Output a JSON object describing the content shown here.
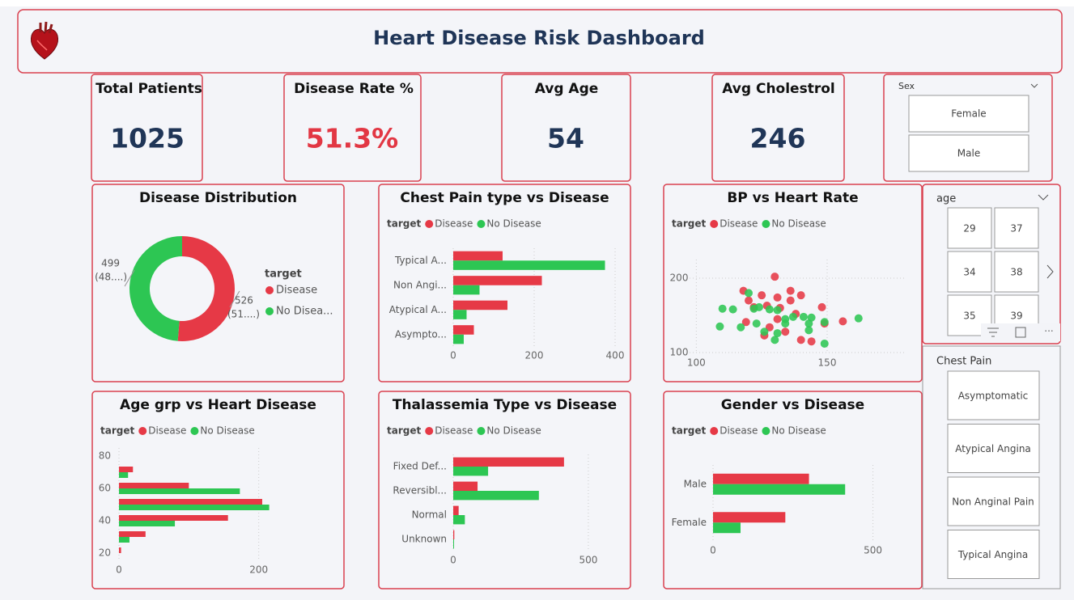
{
  "header": {
    "title": "Heart Disease Risk Dashboard"
  },
  "kpis": [
    {
      "label": "Total Patients",
      "value": 1025
    },
    {
      "label": "Disease Rate %",
      "value": 51.3,
      "value_label": "51.3%"
    },
    {
      "label": "Avg Age",
      "value": 54
    },
    {
      "label": "Avg Cholestrol",
      "value": 246
    }
  ],
  "slicers": {
    "sex": {
      "title": "Sex",
      "items": [
        "Female",
        "Male"
      ]
    },
    "age": {
      "title": "age",
      "items": [
        "29",
        "37",
        "34",
        "38",
        "35",
        "39"
      ]
    },
    "chest_pain": {
      "title": "Chest Pain",
      "items": [
        "Asymptomatic",
        "Atypical Angina",
        "Non Anginal Pain",
        "Typical Angina"
      ]
    }
  },
  "chart_data": [
    {
      "type": "pie",
      "donut": true,
      "title": "Disease Distribution",
      "legend_title": "target",
      "categories": [
        "Disease",
        "No Disea..."
      ],
      "values": [
        526,
        499
      ],
      "percent_labels": [
        "(51....)",
        "(48....)"
      ],
      "colors": [
        "#e63946",
        "#2dc653"
      ]
    },
    {
      "type": "bar",
      "orientation": "horizontal",
      "title": "Chest Pain type vs Disease",
      "legend_title": "target",
      "categories": [
        "Typical A...",
        "Non Angi...",
        "Atypical A...",
        "Asympto..."
      ],
      "series": [
        {
          "name": "Disease",
          "color": "#e63946",
          "values": [
            122,
            219,
            134,
            51
          ]
        },
        {
          "name": "No Disease",
          "color": "#2dc653",
          "values": [
            375,
            65,
            33,
            26
          ]
        }
      ],
      "xlim": [
        0,
        420
      ],
      "xticks": [
        0,
        200,
        400
      ],
      "grid": true
    },
    {
      "type": "scatter",
      "title": "BP vs Heart Rate",
      "legend_title": "target",
      "series": [
        {
          "name": "Disease",
          "color": "#e63946",
          "x": [
            130,
            118,
            125,
            131,
            140,
            136,
            148,
            132,
            122,
            127,
            138,
            156,
            131,
            119,
            128,
            134,
            140,
            144,
            126,
            149,
            136,
            120
          ],
          "y": [
            202,
            183,
            177,
            174,
            177,
            170,
            161,
            160,
            161,
            163,
            152,
            142,
            145,
            141,
            134,
            128,
            117,
            115,
            123,
            139,
            183,
            170
          ]
        },
        {
          "name": "No Disease",
          "color": "#2dc653",
          "x": [
            110,
            114,
            109,
            120,
            122,
            124,
            128,
            131,
            137,
            141,
            144,
            162,
            149,
            143,
            134,
            123,
            117,
            126,
            131,
            143,
            149,
            130,
            134
          ],
          "y": [
            159,
            158,
            135,
            180,
            159,
            161,
            158,
            157,
            148,
            148,
            147,
            146,
            141,
            139,
            139,
            139,
            134,
            128,
            126,
            130,
            112,
            117,
            145
          ]
        }
      ],
      "xlim": [
        90,
        180
      ],
      "xticks": [
        100,
        150
      ],
      "ylim": [
        100,
        225
      ],
      "yticks": [
        100,
        200
      ],
      "grid": true
    },
    {
      "type": "bar",
      "orientation": "horizontal",
      "title": "Age grp vs Heart Disease",
      "legend_title": "target",
      "y": [
        70,
        60,
        50,
        40,
        30,
        20
      ],
      "series": [
        {
          "name": "Disease",
          "color": "#e63946",
          "values": [
            20,
            100,
            205,
            156,
            38,
            3
          ]
        },
        {
          "name": "No Disease",
          "color": "#2dc653",
          "values": [
            13,
            173,
            215,
            80,
            15,
            0
          ]
        }
      ],
      "xlim": [
        0,
        300
      ],
      "xticks": [
        0,
        200
      ],
      "ylim": [
        15,
        85
      ],
      "yticks": [
        20,
        40,
        60,
        80
      ],
      "grid": true
    },
    {
      "type": "bar",
      "orientation": "horizontal",
      "title": "Thalassemia Type vs Disease",
      "legend_title": "target",
      "categories": [
        "Fixed Def...",
        "Reversibl...",
        "Normal",
        "Unknown"
      ],
      "series": [
        {
          "name": "Disease",
          "color": "#e63946",
          "values": [
            410,
            90,
            20,
            4
          ]
        },
        {
          "name": "No Disease",
          "color": "#2dc653",
          "values": [
            129,
            317,
            43,
            3
          ]
        }
      ],
      "xlim": [
        0,
        650
      ],
      "xticks": [
        0,
        500
      ],
      "grid": true
    },
    {
      "type": "bar",
      "orientation": "horizontal",
      "title": "Gender vs Disease",
      "legend_title": "target",
      "categories": [
        "Male",
        "Female"
      ],
      "series": [
        {
          "name": "Disease",
          "color": "#e63946",
          "values": [
            300,
            226
          ]
        },
        {
          "name": "No Disease",
          "color": "#2dc653",
          "values": [
            413,
            86
          ]
        }
      ],
      "xlim": [
        0,
        625
      ],
      "xticks": [
        0,
        500
      ],
      "grid": true
    }
  ]
}
